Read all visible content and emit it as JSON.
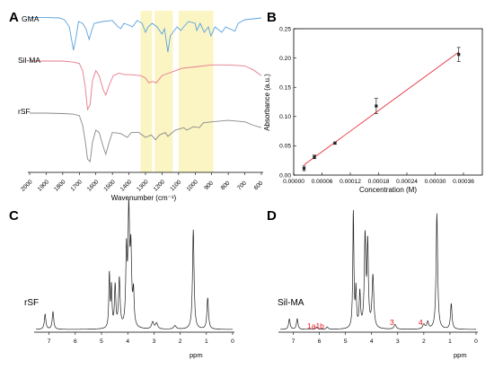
{
  "panels": {
    "A": {
      "letter": "A",
      "chart_data": {
        "type": "line",
        "xlabel": "Wavenumber (cm⁻¹)",
        "x_ticks": [
          2000,
          1900,
          1800,
          1700,
          1600,
          1500,
          1400,
          1300,
          1200,
          1100,
          1000,
          900,
          800,
          700,
          600
        ],
        "xlim": [
          2000,
          600
        ],
        "x_reversed": true,
        "highlight_bands": [
          [
            1330,
            1260
          ],
          [
            1245,
            1135
          ],
          [
            1100,
            890
          ]
        ],
        "highlight_color": "#fbf5c4",
        "series": [
          {
            "name": "GMA",
            "color": "#5aa2e0",
            "points": [
              [
                2000,
                0.04
              ],
              [
                1900,
                0.04
              ],
              [
                1820,
                0.05
              ],
              [
                1790,
                0.1
              ],
              [
                1760,
                0.3
              ],
              [
                1735,
                0.95
              ],
              [
                1720,
                0.6
              ],
              [
                1705,
                0.15
              ],
              [
                1680,
                0.2
              ],
              [
                1660,
                0.35
              ],
              [
                1640,
                0.65
              ],
              [
                1625,
                0.4
              ],
              [
                1610,
                0.2
              ],
              [
                1560,
                0.15
              ],
              [
                1500,
                0.12
              ],
              [
                1470,
                0.28
              ],
              [
                1450,
                0.35
              ],
              [
                1430,
                0.2
              ],
              [
                1400,
                0.25
              ],
              [
                1380,
                0.3
              ],
              [
                1350,
                0.12
              ],
              [
                1320,
                0.2
              ],
              [
                1300,
                0.45
              ],
              [
                1285,
                0.3
              ],
              [
                1260,
                0.2
              ],
              [
                1230,
                0.3
              ],
              [
                1200,
                0.5
              ],
              [
                1185,
                0.35
              ],
              [
                1165,
                1.0
              ],
              [
                1150,
                0.55
              ],
              [
                1110,
                0.3
              ],
              [
                1085,
                0.4
              ],
              [
                1070,
                0.3
              ],
              [
                1040,
                0.15
              ],
              [
                1000,
                0.2
              ],
              [
                990,
                0.4
              ],
              [
                970,
                0.2
              ],
              [
                945,
                0.45
              ],
              [
                920,
                0.3
              ],
              [
                905,
                0.55
              ],
              [
                880,
                0.3
              ],
              [
                840,
                0.45
              ],
              [
                815,
                0.3
              ],
              [
                760,
                0.42
              ],
              [
                740,
                0.2
              ],
              [
                700,
                0.1
              ],
              [
                600,
                0.05
              ]
            ]
          },
          {
            "name": "Sil-MA",
            "color": "#e67a8a",
            "points": [
              [
                2000,
                0.0
              ],
              [
                1900,
                0.0
              ],
              [
                1800,
                0.0
              ],
              [
                1740,
                0.02
              ],
              [
                1700,
                0.05
              ],
              [
                1680,
                0.2
              ],
              [
                1665,
                0.5
              ],
              [
                1650,
                1.0
              ],
              [
                1635,
                0.9
              ],
              [
                1620,
                0.4
              ],
              [
                1600,
                0.2
              ],
              [
                1580,
                0.3
              ],
              [
                1555,
                0.6
              ],
              [
                1540,
                0.7
              ],
              [
                1520,
                0.5
              ],
              [
                1495,
                0.3
              ],
              [
                1460,
                0.25
              ],
              [
                1430,
                0.28
              ],
              [
                1400,
                0.28
              ],
              [
                1330,
                0.3
              ],
              [
                1300,
                0.35
              ],
              [
                1280,
                0.45
              ],
              [
                1260,
                0.42
              ],
              [
                1235,
                0.45
              ],
              [
                1200,
                0.3
              ],
              [
                1160,
                0.25
              ],
              [
                1120,
                0.2
              ],
              [
                1080,
                0.15
              ],
              [
                1000,
                0.12
              ],
              [
                900,
                0.08
              ],
              [
                800,
                0.08
              ],
              [
                700,
                0.1
              ],
              [
                650,
                0.18
              ],
              [
                600,
                0.3
              ]
            ]
          },
          {
            "name": "rSF",
            "color": "#888888",
            "points": [
              [
                2000,
                0.0
              ],
              [
                1900,
                0.0
              ],
              [
                1800,
                0.01
              ],
              [
                1740,
                0.02
              ],
              [
                1700,
                0.05
              ],
              [
                1680,
                0.25
              ],
              [
                1665,
                0.55
              ],
              [
                1650,
                0.95
              ],
              [
                1635,
                1.0
              ],
              [
                1620,
                0.6
              ],
              [
                1600,
                0.35
              ],
              [
                1580,
                0.4
              ],
              [
                1555,
                0.7
              ],
              [
                1540,
                0.85
              ],
              [
                1520,
                0.6
              ],
              [
                1500,
                0.4
              ],
              [
                1450,
                0.42
              ],
              [
                1410,
                0.5
              ],
              [
                1385,
                0.4
              ],
              [
                1340,
                0.4
              ],
              [
                1300,
                0.5
              ],
              [
                1265,
                0.45
              ],
              [
                1240,
                0.55
              ],
              [
                1215,
                0.45
              ],
              [
                1180,
                0.4
              ],
              [
                1165,
                0.48
              ],
              [
                1120,
                0.35
              ],
              [
                1070,
                0.3
              ],
              [
                1050,
                0.35
              ],
              [
                1010,
                0.28
              ],
              [
                975,
                0.3
              ],
              [
                950,
                0.2
              ],
              [
                900,
                0.18
              ],
              [
                800,
                0.15
              ],
              [
                700,
                0.18
              ],
              [
                650,
                0.25
              ],
              [
                600,
                0.3
              ]
            ]
          }
        ]
      }
    },
    "B": {
      "letter": "B",
      "chart_data": {
        "type": "scatter",
        "xlabel": "Concentration (M)",
        "ylabel": "Absorbance (a.u.)",
        "xlim": [
          0,
          0.0004
        ],
        "ylim": [
          0,
          0.25
        ],
        "x_ticks": [
          "0.00000",
          "0.00006",
          "0.00012",
          "0.00018",
          "0.00024",
          "0.00030",
          "0.00036"
        ],
        "x_tick_values": [
          0,
          6e-05,
          0.00012,
          0.00018,
          0.00024,
          0.0003,
          0.00036
        ],
        "y_ticks": [
          "0.00",
          "0.05",
          "0.10",
          "0.15",
          "0.20",
          "0.25"
        ],
        "y_tick_values": [
          0,
          0.05,
          0.1,
          0.15,
          0.2,
          0.25
        ],
        "points": [
          {
            "x": 2.19e-05,
            "y": 0.0115,
            "err": 0.004
          },
          {
            "x": 4.38e-05,
            "y": 0.031,
            "err": 0.003
          },
          {
            "x": 8.75e-05,
            "y": 0.0545,
            "err": 0.002
          },
          {
            "x": 0.000175,
            "y": 0.118,
            "err": 0.013
          },
          {
            "x": 0.00035,
            "y": 0.206,
            "err": 0.012
          }
        ],
        "fit_line": {
          "x": [
            2.19e-05,
            0.00035
          ],
          "y": [
            0.0175,
            0.21
          ],
          "color": "#e8303a"
        }
      }
    },
    "C": {
      "letter": "C",
      "sample": "rSF",
      "chart_data": {
        "type": "line",
        "xlabel": "ppm",
        "x_ticks": [
          7,
          6,
          5,
          4,
          3,
          2,
          1,
          0
        ],
        "xlim": [
          7.5,
          0
        ],
        "x_reversed": true,
        "peaks": [
          {
            "ppm": 7.15,
            "h": 0.13,
            "w": 0.035
          },
          {
            "ppm": 6.85,
            "h": 0.15,
            "w": 0.035
          },
          {
            "ppm": 4.7,
            "h": 0.46,
            "w": 0.025
          },
          {
            "ppm": 4.62,
            "h": 0.34,
            "w": 0.025
          },
          {
            "ppm": 4.48,
            "h": 0.36,
            "w": 0.03
          },
          {
            "ppm": 4.32,
            "h": 0.42,
            "w": 0.035
          },
          {
            "ppm": 4.05,
            "h": 0.62,
            "w": 0.03
          },
          {
            "ppm": 3.96,
            "h": 0.95,
            "w": 0.035
          },
          {
            "ppm": 3.88,
            "h": 0.62,
            "w": 0.035
          },
          {
            "ppm": 3.78,
            "h": 0.28,
            "w": 0.03
          },
          {
            "ppm": 3.05,
            "h": 0.06,
            "w": 0.05
          },
          {
            "ppm": 2.9,
            "h": 0.05,
            "w": 0.05
          },
          {
            "ppm": 2.2,
            "h": 0.03,
            "w": 0.06
          },
          {
            "ppm": 1.5,
            "h": 0.86,
            "w": 0.035
          },
          {
            "ppm": 0.95,
            "h": 0.27,
            "w": 0.035
          }
        ]
      }
    },
    "D": {
      "letter": "D",
      "sample": "Sil-MA",
      "annotations": [
        "1a1b",
        "3",
        "4"
      ],
      "chart_data": {
        "type": "line",
        "xlabel": "ppm",
        "x_ticks": [
          7,
          6,
          5,
          4,
          3,
          2,
          1,
          0
        ],
        "xlim": [
          7.5,
          0
        ],
        "x_reversed": true,
        "peaks": [
          {
            "ppm": 7.15,
            "h": 0.09,
            "w": 0.035
          },
          {
            "ppm": 6.85,
            "h": 0.09,
            "w": 0.035
          },
          {
            "ppm": 6.1,
            "h": 0.02,
            "w": 0.04
          },
          {
            "ppm": 5.7,
            "h": 0.02,
            "w": 0.04
          },
          {
            "ppm": 4.7,
            "h": 1.0,
            "w": 0.025
          },
          {
            "ppm": 4.6,
            "h": 0.32,
            "w": 0.025
          },
          {
            "ppm": 4.45,
            "h": 0.3,
            "w": 0.03
          },
          {
            "ppm": 4.25,
            "h": 0.78,
            "w": 0.035
          },
          {
            "ppm": 4.15,
            "h": 0.7,
            "w": 0.03
          },
          {
            "ppm": 3.95,
            "h": 0.45,
            "w": 0.04
          },
          {
            "ppm": 3.1,
            "h": 0.04,
            "w": 0.05
          },
          {
            "ppm": 2.0,
            "h": 0.04,
            "w": 0.05
          },
          {
            "ppm": 1.85,
            "h": 0.06,
            "w": 0.04
          },
          {
            "ppm": 1.5,
            "h": 1.0,
            "w": 0.035
          },
          {
            "ppm": 0.95,
            "h": 0.22,
            "w": 0.035
          }
        ]
      }
    }
  }
}
